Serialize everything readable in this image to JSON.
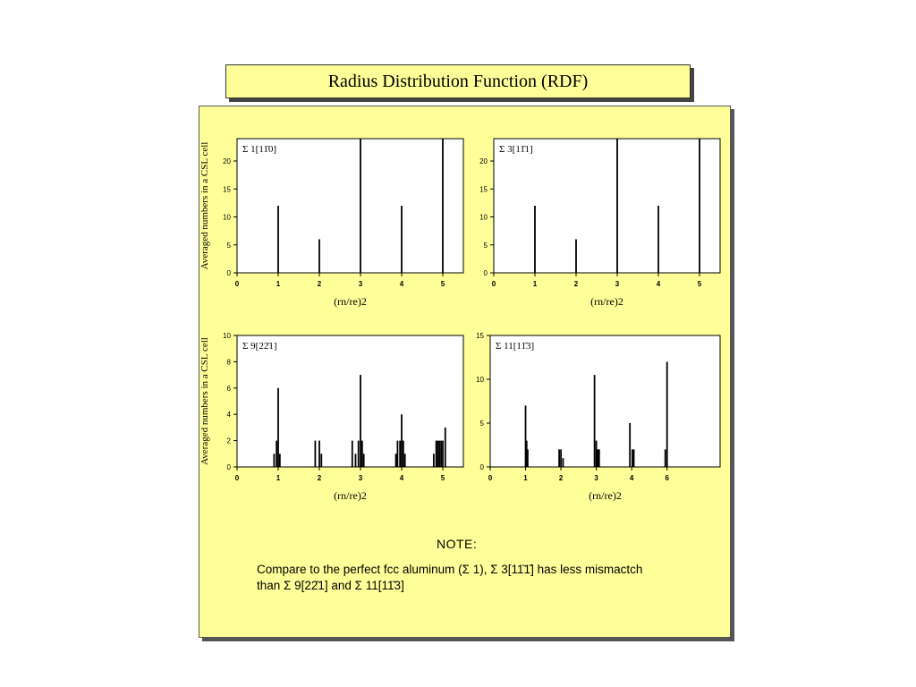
{
  "title": "Radius Distribution Function (RDF)",
  "note": {
    "heading": "NOTE:",
    "line1": "Compare to the perfect fcc aluminum (Σ 1), Σ 3[11̄1̄] has less mismactch",
    "line2": "than Σ 9[22̄1] and Σ 11[11̄3]"
  },
  "chart_data": [
    {
      "type": "bar",
      "label": "Σ 1[11̄0]",
      "xlabel": "(rn/re)2",
      "ylabel": "Averaged numbers in a CSL cell",
      "xlim": [
        0,
        5.5
      ],
      "ylim": [
        0,
        24
      ],
      "xticks": [
        0,
        1,
        2,
        3,
        4,
        5
      ],
      "yticks": [
        0,
        5,
        10,
        15,
        20
      ],
      "x": [
        1,
        2,
        3,
        4,
        5
      ],
      "values": [
        12,
        6,
        24,
        12,
        24
      ]
    },
    {
      "type": "bar",
      "label": "Σ 3[11̄1]",
      "xlabel": "(rn/re)2",
      "ylabel": "",
      "xlim": [
        0,
        5.5
      ],
      "ylim": [
        0,
        24
      ],
      "xticks": [
        0,
        1,
        2,
        3,
        4,
        5
      ],
      "yticks": [
        0,
        5,
        10,
        15,
        20
      ],
      "x": [
        1,
        2,
        3,
        4,
        5
      ],
      "values": [
        12,
        6,
        24,
        12,
        24
      ]
    },
    {
      "type": "bar",
      "label": "Σ 9[22̄1]",
      "xlabel": "(rn/re)2",
      "ylabel": "Averaged numbers in a CSL cell",
      "xlim": [
        0,
        5.5
      ],
      "ylim": [
        0,
        10
      ],
      "xticks": [
        0,
        1,
        2,
        3,
        4,
        5
      ],
      "yticks": [
        0,
        2,
        4,
        6,
        8,
        10
      ],
      "x": [
        0.9,
        0.96,
        1.0,
        1.04,
        1.9,
        2.0,
        2.05,
        2.8,
        2.88,
        2.95,
        3.0,
        3.04,
        3.08,
        3.86,
        3.9,
        3.96,
        4.0,
        4.04,
        4.08,
        4.78,
        4.84,
        4.88,
        4.92,
        4.96,
        5.0,
        5.06
      ],
      "values": [
        1,
        2,
        6,
        1,
        2,
        2,
        1,
        2,
        1,
        2,
        7,
        2,
        1,
        1,
        2,
        2,
        4,
        2,
        1,
        1,
        2,
        2,
        2,
        2,
        2,
        3
      ]
    },
    {
      "type": "bar",
      "label": "Σ 11[11̄3]",
      "xlabel": "(rn/re)2",
      "ylabel": "",
      "xlim": [
        0,
        6.5
      ],
      "ylim": [
        0,
        15
      ],
      "xticks": [
        0,
        1,
        2,
        3,
        4,
        6
      ],
      "yticks": [
        0,
        5,
        10,
        15
      ],
      "tick_value_positions": [
        0,
        1,
        2,
        3,
        4,
        5
      ],
      "x": [
        1.0,
        1.03,
        1.06,
        1.95,
        2.0,
        2.06,
        2.95,
        3.0,
        3.04,
        3.08,
        3.95,
        4.02,
        4.06,
        4.95,
        5.0
      ],
      "values": [
        7,
        3,
        2,
        2,
        2,
        1,
        10.5,
        3,
        2,
        2,
        5,
        2,
        2,
        2,
        12
      ]
    }
  ]
}
